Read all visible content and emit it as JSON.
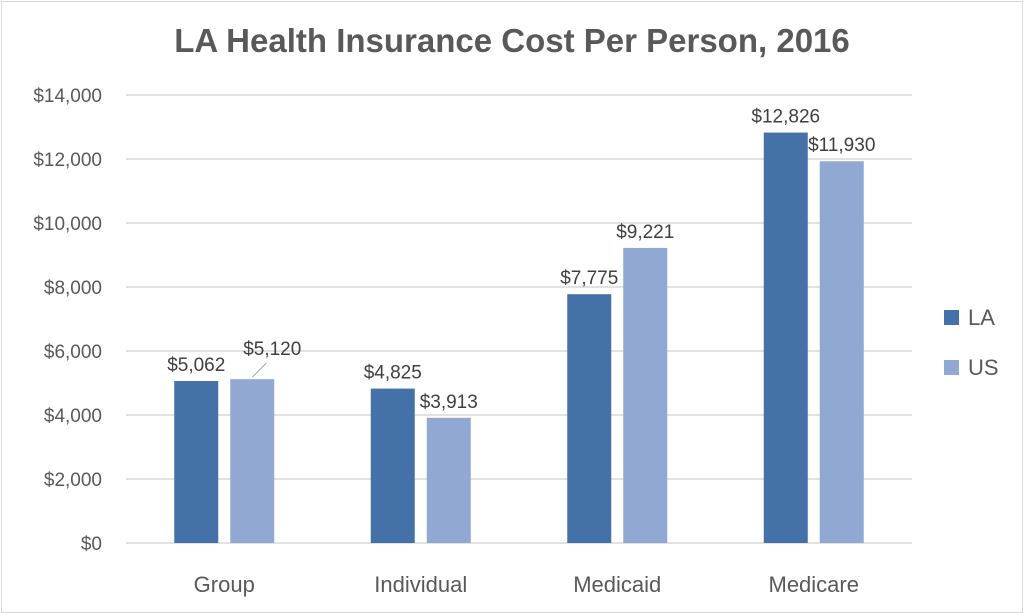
{
  "chart_data": {
    "type": "bar",
    "title": "LA Health Insurance Cost Per Person, 2016",
    "categories": [
      "Group",
      "Individual",
      "Medicaid",
      "Medicare"
    ],
    "series": [
      {
        "name": "LA",
        "values": [
          5062,
          4825,
          7775,
          12826
        ],
        "labels": [
          "$5,062",
          "$4,825",
          "$7,775",
          "$12,826"
        ],
        "color": "#4472a8"
      },
      {
        "name": "US",
        "values": [
          5120,
          3913,
          9221,
          11930
        ],
        "labels": [
          "$5,120",
          "$3,913",
          "$9,221",
          "$11,930"
        ],
        "color": "#91a9d2"
      }
    ],
    "ylim": [
      0,
      14000
    ],
    "yticks": [
      0,
      2000,
      4000,
      6000,
      8000,
      10000,
      12000,
      14000
    ],
    "ytick_labels": [
      "$0",
      "$2,000",
      "$4,000",
      "$6,000",
      "$8,000",
      "$10,000",
      "$12,000",
      "$14,000"
    ],
    "xlabel": "",
    "ylabel": "",
    "grid": true,
    "legend": "right"
  }
}
